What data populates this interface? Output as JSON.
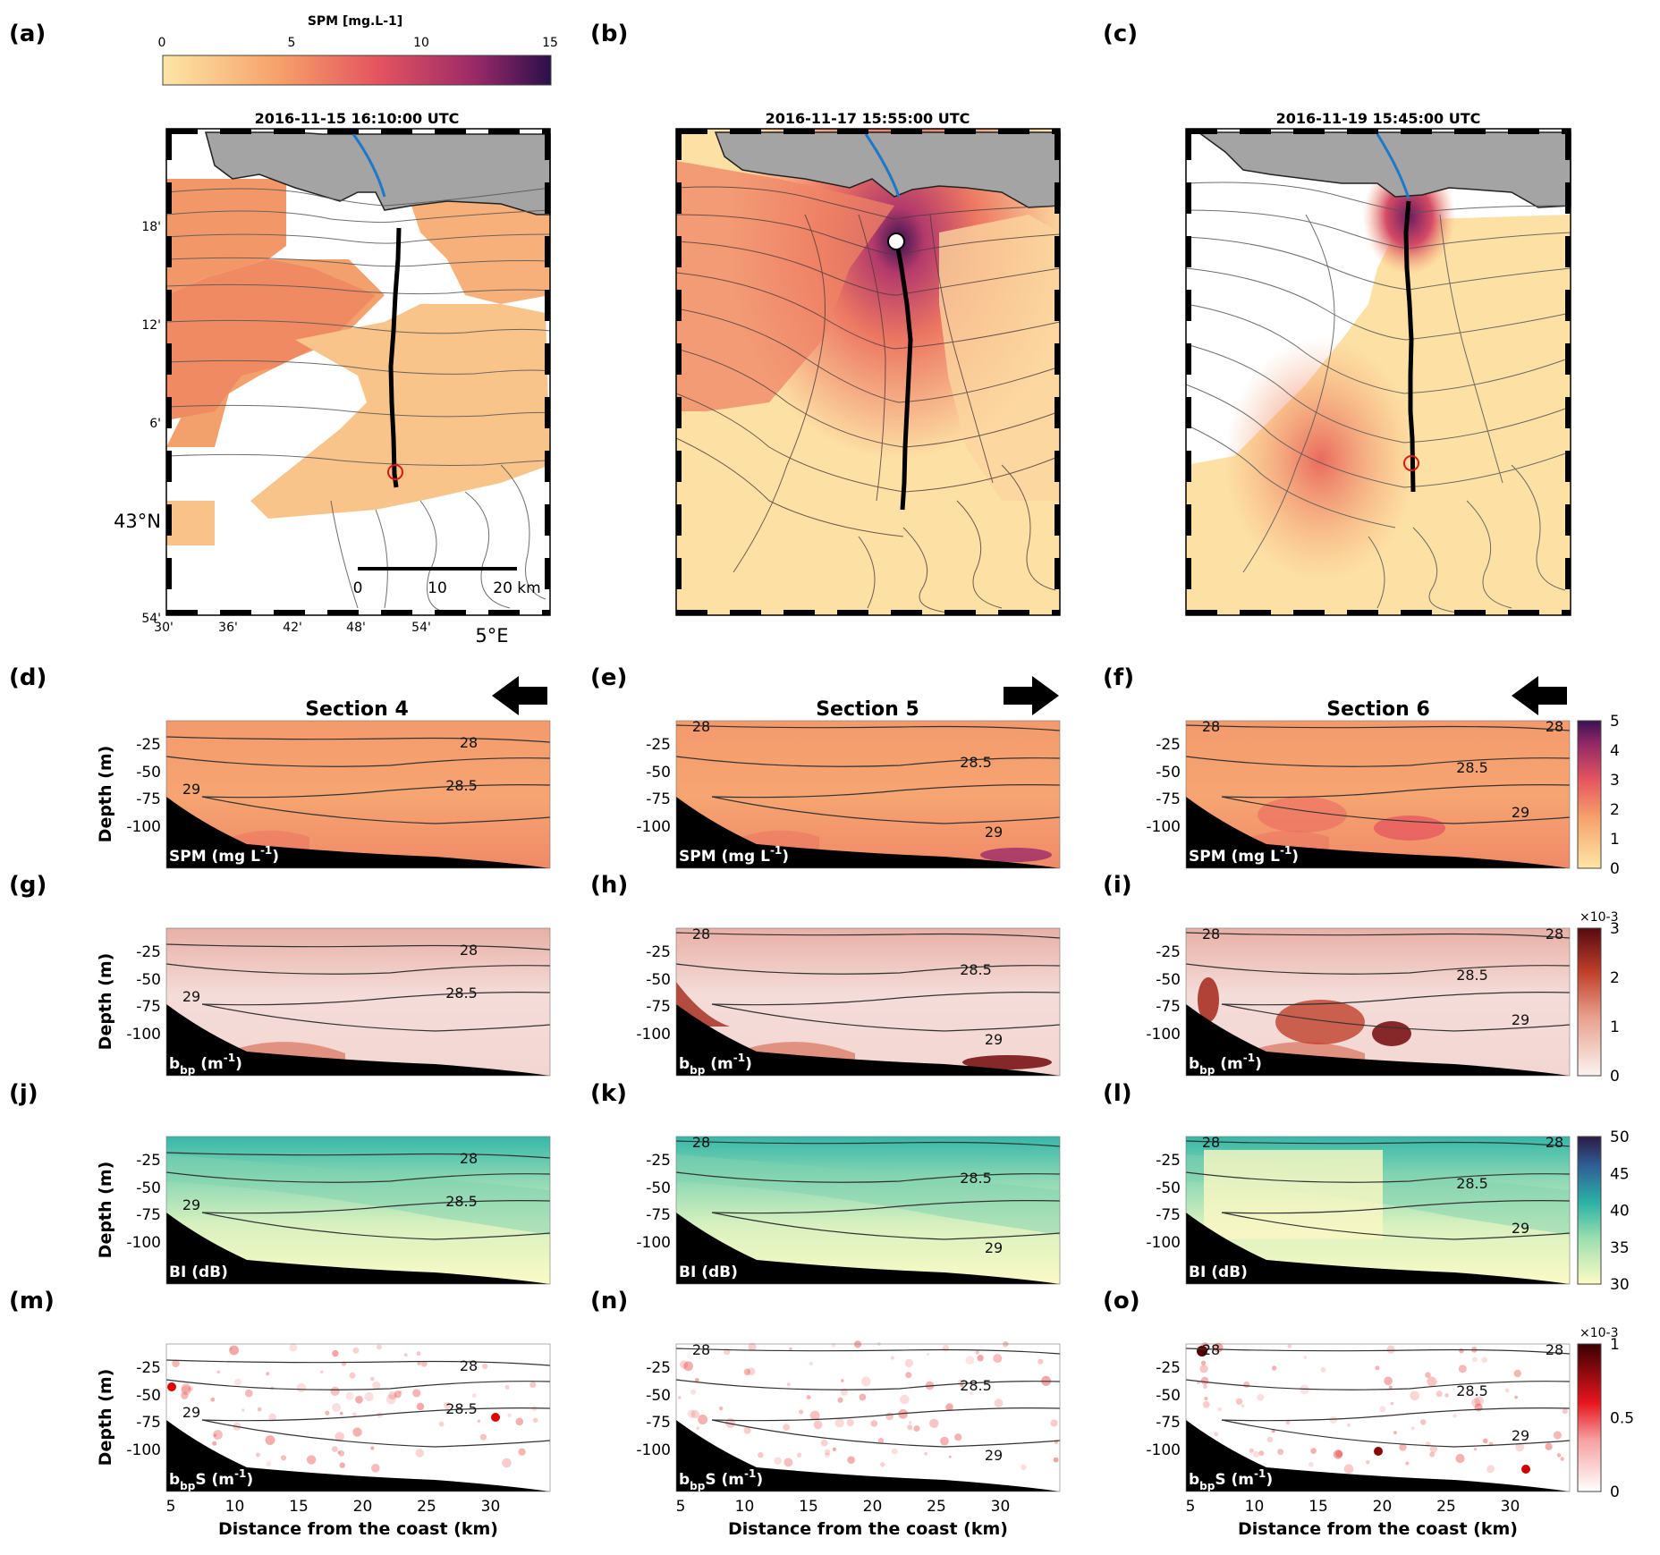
{
  "figure": {
    "map_row": {
      "colorbar": {
        "title": "SPM [mg.L-1]",
        "ticks": [
          "0",
          "5",
          "10",
          "15"
        ]
      },
      "panels": [
        {
          "label": "(a)",
          "timestamp": "2016-11-15 16:10:00 UTC"
        },
        {
          "label": "(b)",
          "timestamp": "2016-11-17 15:55:00 UTC"
        },
        {
          "label": "(c)",
          "timestamp": "2016-11-19 15:45:00 UTC"
        }
      ],
      "lat_ticks": [
        "18'",
        "12'",
        "6'",
        "43°N",
        "54'"
      ],
      "lon_ticks": [
        "30'",
        "36'",
        "42'",
        "48'",
        "54'",
        "5°E"
      ],
      "scale_bar": [
        "0",
        "10",
        "20 km"
      ]
    },
    "sections": {
      "titles": [
        "Section 4",
        "Section 5",
        "Section 6"
      ],
      "directions": [
        "left",
        "right",
        "left"
      ],
      "depth_label": "Depth (m)",
      "depth_ticks": [
        "-25",
        "-50",
        "-75",
        "-100"
      ],
      "xlabel": "Distance from the coast (km)",
      "x_ticks": [
        "5",
        "10",
        "15",
        "20",
        "25",
        "30"
      ],
      "isopycnals": [
        "28",
        "28.5",
        "29"
      ],
      "rows": [
        {
          "labels": [
            "(d)",
            "(e)",
            "(f)"
          ],
          "variable": "SPM (mg L-1)",
          "cbar_ticks": [
            "0",
            "1",
            "2",
            "3",
            "4",
            "5"
          ],
          "cbar_exp": ""
        },
        {
          "labels": [
            "(g)",
            "(h)",
            "(i)"
          ],
          "variable": "bbp (m-1)",
          "cbar_ticks": [
            "0",
            "1",
            "2",
            "3"
          ],
          "cbar_exp": "×10-3"
        },
        {
          "labels": [
            "(j)",
            "(k)",
            "(l)"
          ],
          "variable": "BI (dB)",
          "cbar_ticks": [
            "30",
            "35",
            "40",
            "45",
            "50"
          ],
          "cbar_exp": ""
        },
        {
          "labels": [
            "(m)",
            "(n)",
            "(o)"
          ],
          "variable": "bbpS (m-1)",
          "cbar_ticks": [
            "0",
            "0.5",
            "1"
          ],
          "cbar_exp": "×10-3"
        }
      ]
    }
  }
}
